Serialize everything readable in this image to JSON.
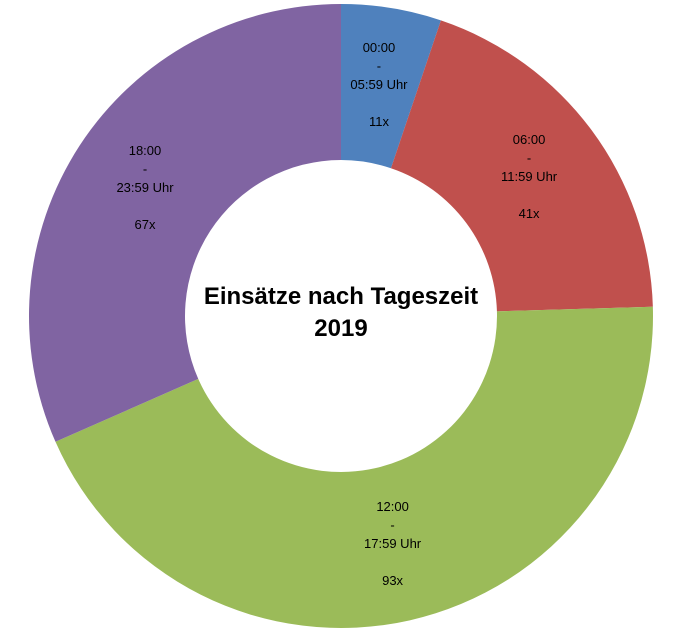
{
  "chart_data": {
    "type": "pie",
    "variant": "donut",
    "title_lines": [
      "Einsätze nach Tageszeit",
      "2019"
    ],
    "categories": [
      "00:00 - 05:59 Uhr",
      "06:00 - 11:59 Uhr",
      "12:00 - 17:59 Uhr",
      "18:00 - 23:59 Uhr"
    ],
    "values": [
      11,
      41,
      93,
      67
    ],
    "slices": [
      {
        "label_lines": [
          "00:00",
          "-",
          "05:59 Uhr"
        ],
        "value_label": "11x",
        "value": 11,
        "color": "#4F81BD"
      },
      {
        "label_lines": [
          "06:00",
          "-",
          "11:59 Uhr"
        ],
        "value_label": "41x",
        "value": 41,
        "color": "#C0504D"
      },
      {
        "label_lines": [
          "12:00",
          "-",
          "17:59 Uhr"
        ],
        "value_label": "93x",
        "value": 93,
        "color": "#9BBB59"
      },
      {
        "label_lines": [
          "18:00",
          "-",
          "23:59 Uhr"
        ],
        "value_label": "67x",
        "value": 67,
        "color": "#8064A2"
      }
    ],
    "legend": "none"
  }
}
